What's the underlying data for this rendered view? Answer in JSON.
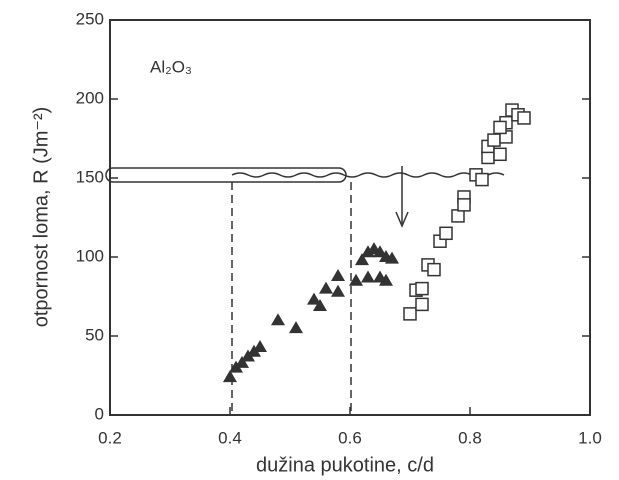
{
  "chart_data": {
    "type": "scatter",
    "annotation": "Al₂O₃",
    "xlabel": "dužina pukotine, c/d",
    "ylabel": "otpornost loma, R (Jm⁻²)",
    "xlim": [
      0.2,
      1.0
    ],
    "ylim": [
      0,
      250
    ],
    "xticks": [
      0.2,
      0.4,
      0.6,
      0.8,
      {
        "value": 1,
        "label": "1.0"
      }
    ],
    "yticks": [
      0,
      50,
      100,
      150,
      200,
      250
    ],
    "series": [
      {
        "marker": "triangle",
        "color": "#333333",
        "x": [
          0.4,
          0.41,
          0.42,
          0.43,
          0.44,
          0.45,
          0.48,
          0.51,
          0.54,
          0.55,
          0.56,
          0.58,
          0.58,
          0.61,
          0.62,
          0.63,
          0.64,
          0.65,
          0.66,
          0.67,
          0.63,
          0.65,
          0.66
        ],
        "values": [
          24,
          30,
          33,
          37,
          40,
          43,
          60,
          55,
          73,
          69,
          80,
          88,
          78,
          85,
          98,
          103,
          105,
          103,
          100,
          99,
          87,
          87,
          85
        ]
      },
      {
        "marker": "square",
        "color": "#333333",
        "x": [
          0.7,
          0.71,
          0.72,
          0.72,
          0.73,
          0.74,
          0.75,
          0.76,
          0.78,
          0.79,
          0.79,
          0.81,
          0.82,
          0.83,
          0.83,
          0.84,
          0.85,
          0.86,
          0.86,
          0.87,
          0.88,
          0.89,
          0.85
        ],
        "values": [
          64,
          79,
          70,
          80,
          95,
          92,
          110,
          115,
          126,
          138,
          133,
          152,
          149,
          163,
          170,
          174,
          165,
          176,
          185,
          193,
          190,
          188,
          182
        ]
      }
    ]
  }
}
